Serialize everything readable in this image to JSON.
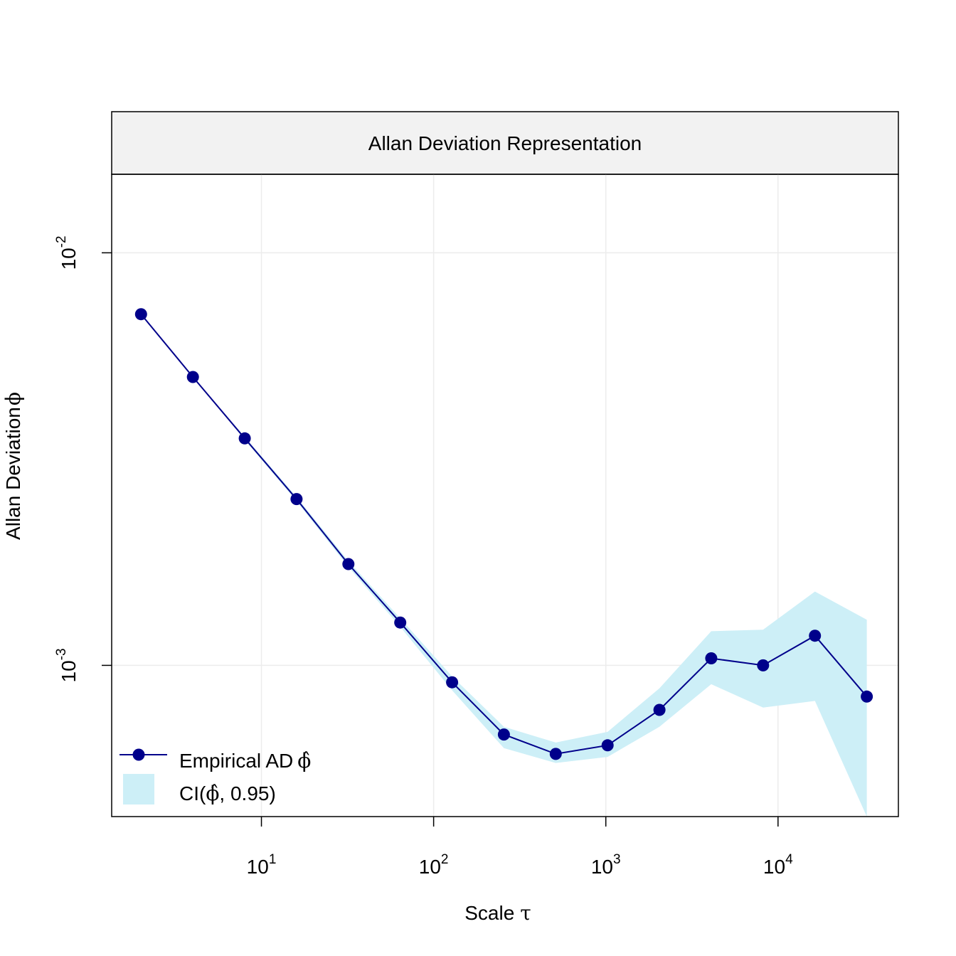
{
  "chart_data": {
    "type": "line",
    "title": "Allan Deviation Representation",
    "xlabel": "Scale",
    "xlabel_symbol": "τ",
    "ylabel": "Allan Deviation",
    "ylabel_symbol": "ϕ",
    "x_scale": "log10",
    "y_scale": "log10",
    "xlim": [
      1.35,
      50000
    ],
    "ylim": [
      0.00043,
      0.0155
    ],
    "x_ticks": [
      {
        "value": 10,
        "base": "10",
        "exp": "1"
      },
      {
        "value": 100,
        "base": "10",
        "exp": "2"
      },
      {
        "value": 1000,
        "base": "10",
        "exp": "3"
      },
      {
        "value": 10000,
        "base": "10",
        "exp": "4"
      }
    ],
    "y_ticks": [
      {
        "value": 0.001,
        "base": "10",
        "exp": "-3"
      },
      {
        "value": 0.01,
        "base": "10",
        "exp": "-2"
      }
    ],
    "grid": true,
    "legend_position": "bottom-left",
    "x": [
      2,
      4,
      8,
      16,
      32,
      64,
      128,
      256,
      512,
      1024,
      2048,
      4096,
      8192,
      16384,
      32768
    ],
    "series": [
      {
        "name": "Empirical AD",
        "name_symbol": "ϕ̂",
        "color": "#00008B",
        "values": [
          0.0071,
          0.005,
          0.00355,
          0.00253,
          0.00176,
          0.00127,
          0.00091,
          0.00068,
          0.00061,
          0.00064,
          0.00078,
          0.00104,
          0.001,
          0.00118,
          0.00084
        ]
      }
    ],
    "ci_band": {
      "name": "CI(",
      "name_symbol": "ϕ̂",
      "name_suffix": ", 0.95)",
      "color": "#CDEFF7",
      "lower": [
        0.0071,
        0.005,
        0.00352,
        0.0025,
        0.00173,
        0.00124,
        0.00087,
        0.00063,
        0.00058,
        0.0006,
        0.00071,
        0.0009,
        0.00079,
        0.00082,
        0.00043
      ],
      "upper": [
        0.0071,
        0.005,
        0.00358,
        0.00256,
        0.00179,
        0.0013,
        0.00094,
        0.00071,
        0.00065,
        0.00069,
        0.00088,
        0.00121,
        0.00122,
        0.00151,
        0.00129
      ]
    }
  }
}
